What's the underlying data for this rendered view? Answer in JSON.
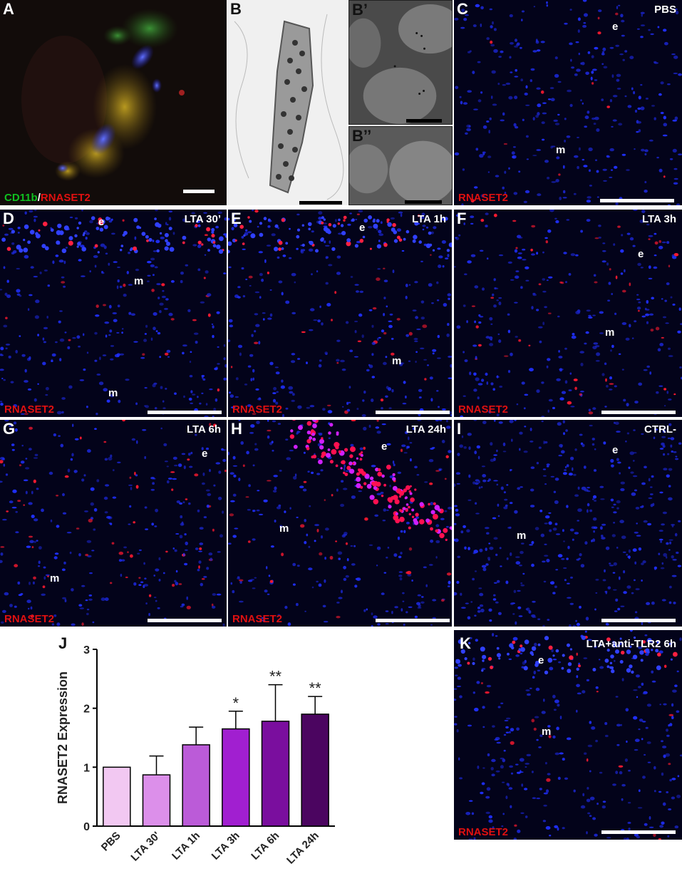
{
  "panels": {
    "A": {
      "label": "A",
      "stain_green": "CD11b",
      "stain_sep": "/",
      "stain_red": "RNASET2"
    },
    "B": {
      "label": "B"
    },
    "B1": {
      "label": "B’"
    },
    "B2": {
      "label": "B’’"
    },
    "C": {
      "label": "C",
      "title": "PBS",
      "e": "e",
      "m": "m",
      "stain": "RNASET2"
    },
    "D": {
      "label": "D",
      "title": "LTA 30’",
      "e": "e",
      "m1": "m",
      "m2": "m",
      "stain": "RNASET2"
    },
    "E": {
      "label": "E",
      "title": "LTA 1h",
      "e": "e",
      "m": "m",
      "stain": "RNASET2"
    },
    "F": {
      "label": "F",
      "title": "LTA 3h",
      "e": "e",
      "m": "m",
      "stain": "RNASET2"
    },
    "G": {
      "label": "G",
      "title": "LTA 6h",
      "e": "e",
      "m": "m",
      "stain": "RNASET2"
    },
    "H": {
      "label": "H",
      "title": "LTA 24h",
      "e": "e",
      "m": "m",
      "stain": "RNASET2"
    },
    "I": {
      "label": "I",
      "title": "CTRL-",
      "e": "e",
      "m": "m"
    },
    "J": {
      "label": "J"
    },
    "K": {
      "label": "K",
      "title": "LTA+anti-TLR2 6h",
      "e": "e",
      "m": "m",
      "stain": "RNASET2"
    }
  },
  "chart_data": {
    "type": "bar",
    "ylabel": "RNASET2 Expression",
    "ylim": [
      0,
      3
    ],
    "yticks": [
      "0",
      "1",
      "2",
      "3"
    ],
    "categories": [
      "PBS",
      "LTA 30'",
      "LTA 1h",
      "LTA 3h",
      "LTA 6h",
      "LTA 24h"
    ],
    "values": [
      1.0,
      0.87,
      1.38,
      1.65,
      1.78,
      1.9
    ],
    "errors": [
      0,
      0.32,
      0.3,
      0.3,
      0.62,
      0.3
    ],
    "significance": [
      "",
      "",
      "",
      "*",
      "**",
      "**"
    ],
    "colors": [
      "#f2c8f2",
      "#dc8fea",
      "#bb5bd8",
      "#a11fd0",
      "#7a0e9e",
      "#4b0560"
    ]
  }
}
